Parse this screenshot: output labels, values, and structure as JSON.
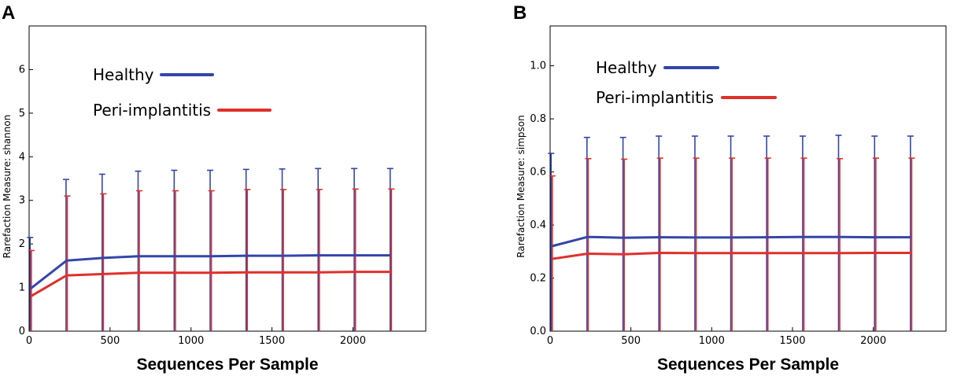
{
  "chart_data": [
    {
      "panel": "A",
      "type": "line",
      "xlabel": "Sequences Per Sample",
      "ylabel": "Rarefaction Measure: shannon",
      "xlim": [
        0,
        2450
      ],
      "ylim": [
        0,
        7
      ],
      "xticks": [
        0,
        500,
        1000,
        1500,
        2000
      ],
      "yticks": [
        0,
        1,
        2,
        3,
        4,
        5,
        6
      ],
      "x": [
        10,
        232,
        455,
        677,
        900,
        1122,
        1344,
        1567,
        1789,
        2012,
        2234
      ],
      "series": [
        {
          "name": "Healthy",
          "color": "#3446a8",
          "values": [
            0.98,
            1.62,
            1.68,
            1.72,
            1.72,
            1.72,
            1.73,
            1.73,
            1.74,
            1.74,
            1.74
          ],
          "error_upper": [
            2.15,
            3.48,
            3.6,
            3.67,
            3.69,
            3.69,
            3.71,
            3.72,
            3.73,
            3.73,
            3.73
          ]
        },
        {
          "name": "Peri-implantitis",
          "color": "#e0302b",
          "values": [
            0.8,
            1.28,
            1.31,
            1.34,
            1.34,
            1.34,
            1.35,
            1.35,
            1.35,
            1.36,
            1.36
          ],
          "error_upper": [
            1.85,
            3.1,
            3.15,
            3.22,
            3.22,
            3.22,
            3.25,
            3.25,
            3.25,
            3.26,
            3.26
          ]
        }
      ],
      "grid": false
    },
    {
      "panel": "B",
      "type": "line",
      "xlabel": "Sequences Per Sample",
      "ylabel": "Rarefaction Measure: simpson",
      "xlim": [
        0,
        2450
      ],
      "ylim": [
        0,
        1.15
      ],
      "xticks": [
        0,
        500,
        1000,
        1500,
        2000
      ],
      "yticks": [
        0.0,
        0.2,
        0.4,
        0.6,
        0.8,
        1.0
      ],
      "ytick_labels": [
        "0.0",
        "0.2",
        "0.4",
        "0.6",
        "0.8",
        "1.0"
      ],
      "x": [
        10,
        232,
        455,
        677,
        900,
        1122,
        1344,
        1567,
        1789,
        2012,
        2234
      ],
      "series": [
        {
          "name": "Healthy",
          "color": "#3446a8",
          "values": [
            0.32,
            0.355,
            0.352,
            0.354,
            0.353,
            0.353,
            0.354,
            0.355,
            0.355,
            0.354,
            0.354
          ],
          "error_upper": [
            0.67,
            0.73,
            0.73,
            0.735,
            0.735,
            0.735,
            0.735,
            0.735,
            0.738,
            0.735,
            0.735
          ]
        },
        {
          "name": "Peri-implantitis",
          "color": "#e0302b",
          "values": [
            0.272,
            0.292,
            0.29,
            0.295,
            0.294,
            0.294,
            0.294,
            0.294,
            0.294,
            0.295,
            0.295
          ],
          "error_upper": [
            0.585,
            0.65,
            0.648,
            0.652,
            0.652,
            0.652,
            0.652,
            0.652,
            0.65,
            0.652,
            0.652
          ]
        }
      ],
      "grid": false
    }
  ]
}
